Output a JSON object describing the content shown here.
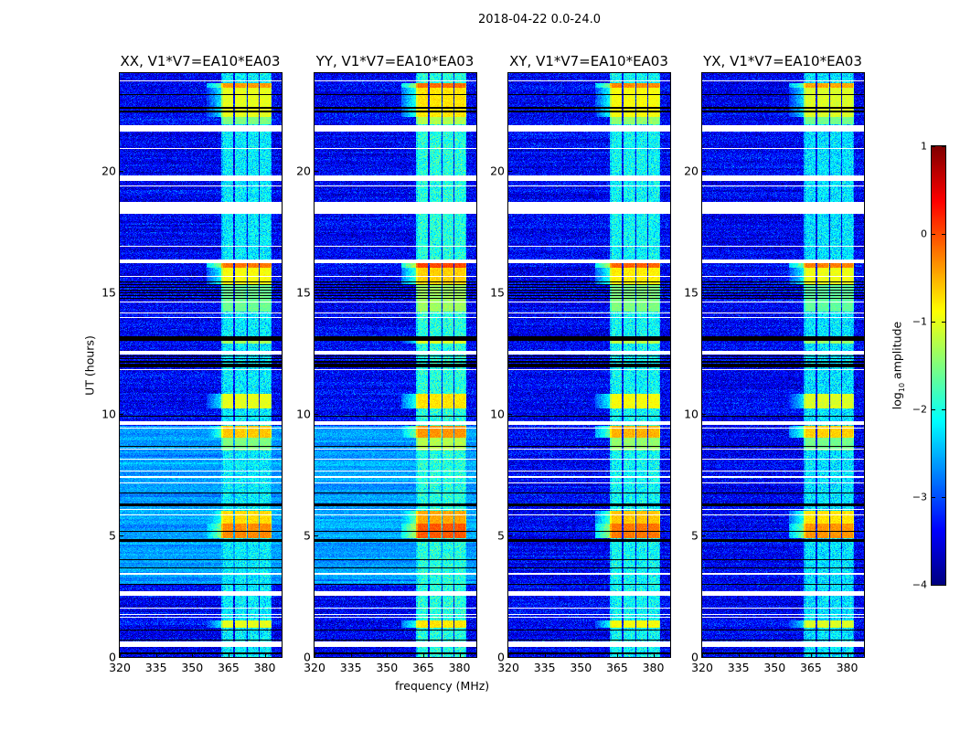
{
  "figure": {
    "suptitle": "2018-04-22 0.0-24.0",
    "xlabel": "frequency (MHz)",
    "ylabel": "UT (hours)",
    "colorbar_label_main": "log",
    "colorbar_label_sub": "10",
    "colorbar_label_rest": " amplitude"
  },
  "chart_data": {
    "type": "heatmap",
    "colormap": "jet",
    "panels": [
      {
        "title": "XX, V1*V7=EA10*EA03",
        "bright_bg": true,
        "gain": 0.0
      },
      {
        "title": "YY, V1*V7=EA10*EA03",
        "bright_bg": true,
        "gain": 0.25
      },
      {
        "title": "XY, V1*V7=EA10*EA03",
        "bright_bg": false,
        "gain": 0.1
      },
      {
        "title": "YX, V1*V7=EA10*EA03",
        "bright_bg": false,
        "gain": -0.05
      }
    ],
    "xlim": [
      320,
      387
    ],
    "ylim": [
      0,
      24
    ],
    "xticks": [
      "320",
      "335",
      "350",
      "365",
      "380"
    ],
    "xtick_values": [
      320,
      335,
      350,
      365,
      380
    ],
    "yticks": [
      "0",
      "5",
      "10",
      "15",
      "20"
    ],
    "ytick_values": [
      0,
      5,
      10,
      15,
      20
    ],
    "clim": [
      -4,
      1
    ],
    "cticks": [
      "−4",
      "−3",
      "−2",
      "−1",
      "0",
      "1"
    ],
    "ctick_values": [
      -4,
      -3,
      -2,
      -1,
      0,
      1
    ],
    "rfi_channels_mhz": [
      [
        362,
        367
      ],
      [
        367.6,
        372.5
      ],
      [
        373,
        377.6
      ],
      [
        378,
        382.7
      ]
    ],
    "background_log10": {
      "default": -3.4,
      "bright_interval_hours": [
        3.0,
        9.5
      ],
      "bright_level": -2.6
    },
    "rfi_levels_log10": [
      {
        "t": [
          23.4,
          23.6
        ],
        "v": -0.4
      },
      {
        "t": [
          22.2,
          23.4
        ],
        "v": -1.0
      },
      {
        "t": [
          21.9,
          22.2
        ],
        "v": -1.5
      },
      {
        "t": [
          16.0,
          16.25
        ],
        "v": -0.2
      },
      {
        "t": [
          15.3,
          16.0
        ],
        "v": -0.9
      },
      {
        "t": [
          14.2,
          15.3
        ],
        "v": -1.6
      },
      {
        "t": [
          12.9,
          13.15
        ],
        "v": -1.3
      },
      {
        "t": [
          10.2,
          10.8
        ],
        "v": -1.0
      },
      {
        "t": [
          9.0,
          9.5
        ],
        "v": -0.6
      },
      {
        "t": [
          8.5,
          9.0
        ],
        "v": -1.5
      },
      {
        "t": [
          5.5,
          6.0
        ],
        "v": -0.7
      },
      {
        "t": [
          4.9,
          5.5
        ],
        "v": -0.3
      },
      {
        "t": [
          1.2,
          1.5
        ],
        "v": -1.0
      }
    ],
    "rfi_default_log10": -2.2,
    "blank_intervals_hours": [
      [
        23.66,
        23.7
      ],
      [
        21.6,
        21.85
      ],
      [
        20.88,
        20.92
      ],
      [
        19.55,
        19.8
      ],
      [
        19.34,
        19.38
      ],
      [
        18.2,
        18.7
      ],
      [
        18.05,
        18.08
      ],
      [
        17.9,
        17.93
      ],
      [
        17.15,
        17.18
      ],
      [
        17.0,
        17.03
      ],
      [
        16.88,
        16.91
      ],
      [
        16.2,
        16.35
      ],
      [
        15.63,
        15.67
      ],
      [
        14.58,
        14.62
      ],
      [
        14.13,
        14.17
      ],
      [
        13.93,
        13.97
      ],
      [
        12.45,
        12.6
      ],
      [
        11.78,
        11.82
      ],
      [
        9.55,
        9.7
      ],
      [
        9.38,
        9.42
      ],
      [
        8.53,
        8.57
      ],
      [
        8.1,
        8.14
      ],
      [
        7.64,
        7.68
      ],
      [
        7.38,
        7.42
      ],
      [
        7.13,
        7.17
      ],
      [
        6.03,
        6.07
      ],
      [
        5.83,
        5.87
      ],
      [
        3.38,
        3.44
      ],
      [
        2.5,
        2.72
      ],
      [
        1.98,
        2.02
      ],
      [
        1.73,
        1.77
      ],
      [
        1.63,
        1.67
      ],
      [
        0.4,
        0.65
      ]
    ],
    "flagged_lines_hours": [
      [
        13.0,
        13.2
      ],
      [
        12.1,
        12.15
      ],
      [
        11.95,
        12.0
      ],
      [
        9.88,
        9.93
      ],
      [
        8.65,
        8.69
      ],
      [
        6.73,
        6.77
      ],
      [
        6.2,
        6.3
      ],
      [
        5.13,
        5.17
      ],
      [
        4.75,
        4.85
      ],
      [
        3.98,
        4.02
      ],
      [
        3.63,
        3.67
      ],
      [
        2.98,
        3.02
      ],
      [
        1.08,
        1.12
      ],
      [
        0.68,
        0.72
      ],
      [
        0.13,
        0.17
      ],
      [
        22.4,
        22.45
      ],
      [
        22.55,
        22.6
      ],
      [
        23.1,
        23.13
      ]
    ],
    "flagged_hatch_hours": [
      [
        14.7,
        15.5
      ],
      [
        11.8,
        12.4
      ]
    ]
  }
}
